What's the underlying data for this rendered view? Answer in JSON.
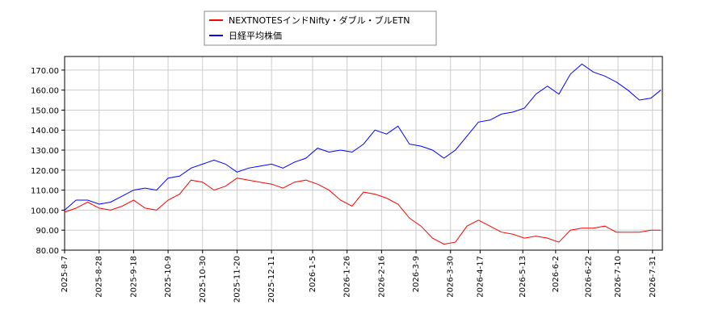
{
  "chart_data": {
    "type": "line",
    "x": [
      "2025-8-7",
      "2025-8-14",
      "2025-8-21",
      "2025-8-28",
      "2025-9-4",
      "2025-9-11",
      "2025-9-18",
      "2025-9-25",
      "2025-10-2",
      "2025-10-9",
      "2025-10-16",
      "2025-10-23",
      "2025-10-30",
      "2025-11-6",
      "2025-11-13",
      "2025-11-20",
      "2025-11-27",
      "2025-12-4",
      "2025-12-11",
      "2025-12-18",
      "2025-12-25",
      "2026-1-1",
      "2026-1-8",
      "2026-1-15",
      "2026-1-22",
      "2026-1-29",
      "2026-2-5",
      "2026-2-12",
      "2026-2-19",
      "2026-2-26",
      "2026-3-5",
      "2026-3-12",
      "2026-3-19",
      "2026-3-26",
      "2026-4-2",
      "2026-4-9",
      "2026-4-16",
      "2026-4-23",
      "2026-4-30",
      "2026-5-7",
      "2026-5-14",
      "2026-5-21",
      "2026-5-28",
      "2026-6-4",
      "2026-6-11",
      "2026-6-18",
      "2026-6-25",
      "2026-7-2",
      "2026-7-9",
      "2026-7-16",
      "2026-7-23",
      "2026-7-30",
      "2026-8-5"
    ],
    "series": [
      {
        "name": "NEXTNOTESインドNifty・ダブル・ブルETN",
        "color": "#ff0000",
        "values": [
          99,
          101,
          104,
          101,
          100,
          102,
          105,
          101,
          100,
          105,
          108,
          115,
          114,
          110,
          112,
          116,
          115,
          114,
          113,
          111,
          114,
          115,
          113,
          110,
          105,
          102,
          109,
          108,
          106,
          103,
          96,
          92,
          86,
          83,
          84,
          92,
          95,
          92,
          89,
          88,
          86,
          87,
          86,
          84,
          90,
          91,
          91,
          92,
          89,
          89,
          89,
          90,
          90
        ]
      },
      {
        "name": "日経平均株価",
        "color": "#0000ff",
        "values": [
          100,
          105,
          105,
          103,
          104,
          107,
          110,
          111,
          110,
          116,
          117,
          121,
          123,
          125,
          123,
          119,
          121,
          122,
          123,
          121,
          124,
          126,
          131,
          129,
          130,
          129,
          133,
          140,
          138,
          142,
          133,
          132,
          130,
          126,
          130,
          137,
          144,
          145,
          148,
          149,
          151,
          158,
          162,
          158,
          168,
          173,
          169,
          167,
          164,
          160,
          155,
          156,
          160
        ]
      }
    ],
    "xlim": [
      "2025-8-7",
      "2026-8-6"
    ],
    "xticks": [
      "2025-8-7",
      "2025-8-28",
      "2025-9-18",
      "2025-10-9",
      "2025-10-30",
      "2025-11-20",
      "2025-12-11",
      "2026-1-5",
      "2026-1-26",
      "2026-2-16",
      "2026-3-9",
      "2026-3-30",
      "2026-4-17",
      "2026-5-13",
      "2026-6-2",
      "2026-6-22",
      "2026-7-10",
      "2026-7-31"
    ],
    "ylim": [
      80,
      176.8
    ],
    "yticks": [
      {
        "value": 80,
        "label": "80.00"
      },
      {
        "value": 90,
        "label": "90.00"
      },
      {
        "value": 100,
        "label": "100.00"
      },
      {
        "value": 110,
        "label": "110.00"
      },
      {
        "value": 120,
        "label": "120.00"
      },
      {
        "value": 130,
        "label": "130.00"
      },
      {
        "value": 140,
        "label": "140.00"
      },
      {
        "value": 150,
        "label": "150.00"
      },
      {
        "value": 160,
        "label": "160.00"
      },
      {
        "value": 170,
        "label": "170.00"
      }
    ],
    "grid": true
  }
}
